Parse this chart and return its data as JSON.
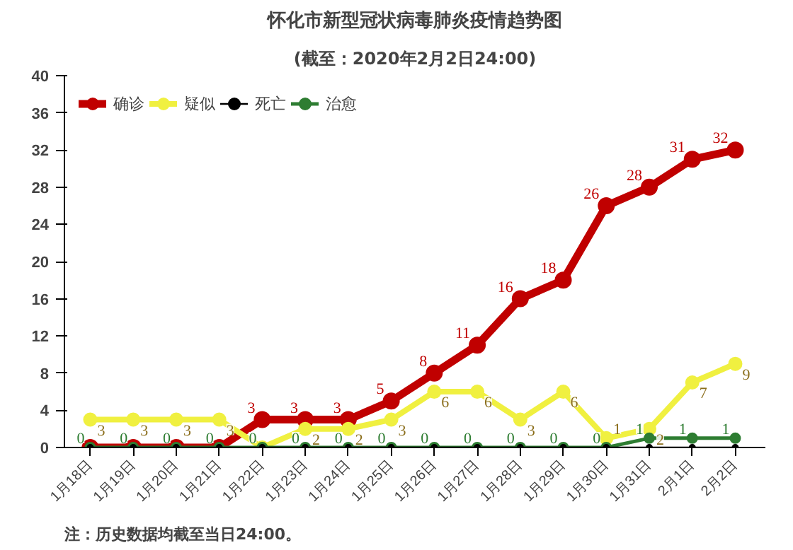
{
  "chart_data": {
    "type": "line",
    "title": "怀化市新型冠状病毒肺炎疫情趋势图",
    "subtitle": "(截至：2020年2月2日24:00)",
    "categories": [
      "1月18日",
      "1月19日",
      "1月20日",
      "1月21日",
      "1月22日",
      "1月23日",
      "1月24日",
      "1月25日",
      "1月26日",
      "1月27日",
      "1月28日",
      "1月29日",
      "1月30日",
      "1月31日",
      "2月1日",
      "2月2日"
    ],
    "series": [
      {
        "name": "确诊",
        "color": "#c00000",
        "values": [
          0,
          0,
          0,
          0,
          3,
          3,
          3,
          5,
          8,
          11,
          16,
          18,
          26,
          28,
          31,
          32
        ],
        "value_labels": [
          null,
          null,
          null,
          null,
          "3",
          "3",
          "3",
          "5",
          "8",
          "11",
          "16",
          "18",
          "26",
          "28",
          "31",
          "32"
        ]
      },
      {
        "name": "疑似",
        "color": "#f0f040",
        "values": [
          3,
          3,
          3,
          3,
          0,
          2,
          2,
          3,
          6,
          6,
          3,
          6,
          1,
          2,
          7,
          9
        ],
        "value_labels": [
          "3",
          "3",
          "3",
          "3",
          null,
          "2",
          "2",
          "3",
          "6",
          "6",
          "3",
          "6",
          "1",
          "2",
          "7",
          "9"
        ]
      },
      {
        "name": "死亡",
        "color": "#000000",
        "values": [
          0,
          0,
          0,
          0,
          0,
          0,
          0,
          0,
          0,
          0,
          0,
          0,
          0,
          0,
          0,
          0
        ]
      },
      {
        "name": "治愈",
        "color": "#2e7d32",
        "values": [
          0,
          0,
          0,
          0,
          0,
          0,
          0,
          0,
          0,
          0,
          0,
          0,
          0,
          1,
          1,
          1
        ],
        "value_labels": [
          "0",
          "0",
          "0",
          "0",
          "0",
          "0",
          "0",
          "0",
          "0",
          "0",
          "0",
          "0",
          "0",
          "1",
          "1",
          "1"
        ]
      }
    ],
    "ylim": [
      0,
      40
    ],
    "yticks": [
      0,
      4,
      8,
      12,
      16,
      20,
      24,
      28,
      32,
      36,
      40
    ],
    "grid": false,
    "legend": "top left",
    "marker": "circle",
    "line_style": "solid",
    "annotations": [
      "注：历史数据均截至当日24:00。"
    ]
  }
}
